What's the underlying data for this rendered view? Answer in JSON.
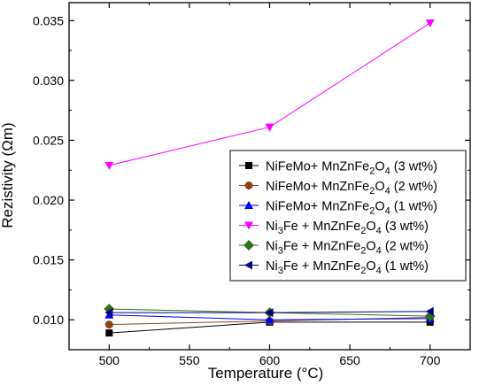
{
  "chart_data": {
    "type": "line",
    "xlabel": "Temperature (°C)",
    "ylabel": "Rezistivity (Ωm)",
    "x": [
      500,
      600,
      700
    ],
    "xlim": [
      475,
      725
    ],
    "ylim": [
      0.0075,
      0.0365
    ],
    "xticks": [
      "500",
      "550",
      "600",
      "650",
      "700"
    ],
    "yticks": [
      "0.010",
      "0.015",
      "0.020",
      "0.025",
      "0.030",
      "0.035"
    ],
    "grid": false,
    "legend_position": "right",
    "series": [
      {
        "name": "NiFeMo+ MnZnFe2O4 (3 wt%)",
        "marker": "square",
        "color": "#000000",
        "values": [
          0.0089,
          0.0098,
          0.0098
        ]
      },
      {
        "name": "NiFeMo+ MnZnFe2O4 (2 wt%)",
        "marker": "circle",
        "color": "#8b4513",
        "values": [
          0.0096,
          0.0099,
          0.0102
        ]
      },
      {
        "name": "NiFeMo+ MnZnFe2O4 (1 wt%)",
        "marker": "triangle-up",
        "color": "#0000ff",
        "values": [
          0.0104,
          0.01,
          0.0101
        ]
      },
      {
        "name": "Ni3Fe + MnZnFe2O4 (3 wt%)",
        "marker": "triangle-down",
        "color": "#ff00ff",
        "values": [
          0.0229,
          0.0261,
          0.0348
        ]
      },
      {
        "name": "Ni3Fe + MnZnFe2O4 (2 wt%)",
        "marker": "diamond",
        "color": "#2f6f1a",
        "values": [
          0.0109,
          0.0106,
          0.0103
        ]
      },
      {
        "name": "Ni3Fe + MnZnFe2O4 (1 wt%)",
        "marker": "triangle-left",
        "color": "#000080",
        "values": [
          0.0106,
          0.0106,
          0.0107
        ]
      }
    ]
  }
}
